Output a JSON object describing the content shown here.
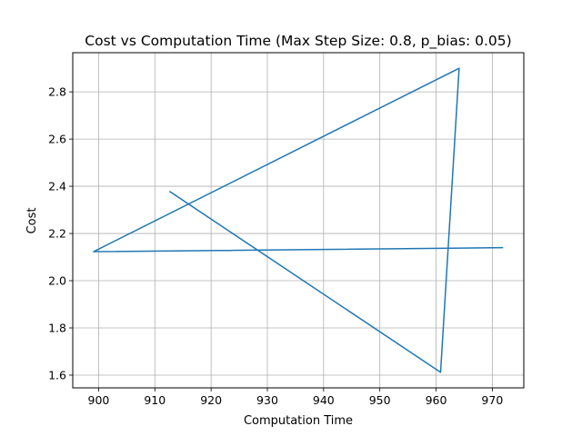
{
  "chart_data": {
    "type": "line",
    "title": "Cost vs Computation Time (Max Step Size: 0.8, p_bias: 0.05)",
    "xlabel": "Computation Time",
    "ylabel": "Cost",
    "xlim": [
      895.4,
      975.6
    ],
    "ylim": [
      1.546,
      2.966
    ],
    "xticks": [
      900,
      910,
      920,
      930,
      940,
      950,
      960,
      970
    ],
    "xtick_labels": [
      "900",
      "910",
      "920",
      "930",
      "940",
      "950",
      "960",
      "970"
    ],
    "yticks": [
      1.6,
      1.8,
      2.0,
      2.2,
      2.4,
      2.6,
      2.8
    ],
    "ytick_labels": [
      "1.6",
      "1.8",
      "2.0",
      "2.2",
      "2.4",
      "2.6",
      "2.8"
    ],
    "grid": true,
    "series": [
      {
        "color": "#1f77b4",
        "x": [
          912.7,
          960.8,
          964.1,
          899.1,
          971.8
        ],
        "y": [
          2.377,
          1.612,
          2.9,
          2.123,
          2.14
        ]
      }
    ]
  }
}
